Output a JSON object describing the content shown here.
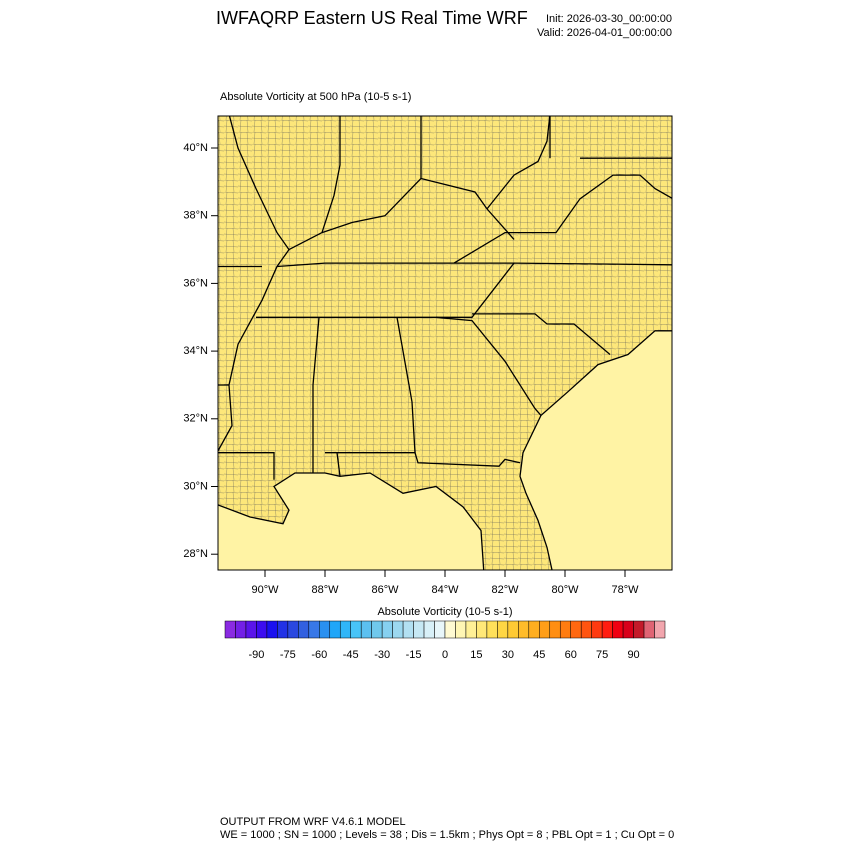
{
  "header": {
    "title": "IWFAQRP Eastern US Real Time WRF",
    "init": "Init: 2026-03-30_00:00:00",
    "valid": "Valid: 2026-04-01_00:00:00"
  },
  "plot": {
    "title": "Absolute Vorticity at 500 hPa   (10-5 s-1)",
    "lat_labels": [
      "40°N",
      "38°N",
      "36°N",
      "34°N",
      "32°N",
      "30°N",
      "28°N"
    ],
    "lon_labels": [
      "90°W",
      "88°W",
      "86°W",
      "84°W",
      "82°W",
      "80°W",
      "78°W"
    ]
  },
  "colorbar": {
    "title": "Absolute Vorticity  (10-5 s-1)",
    "range": [
      -105,
      105
    ],
    "ticks": [
      -90,
      -75,
      -60,
      -45,
      -30,
      -15,
      0,
      15,
      30,
      45,
      60,
      75,
      90
    ],
    "colors": [
      "#8a2be2",
      "#7320e6",
      "#5a14ea",
      "#3c0cf0",
      "#1a10f0",
      "#2232e6",
      "#2a48e0",
      "#3260e0",
      "#3878e8",
      "#2a90f0",
      "#20a6f8",
      "#30b6f8",
      "#48c4f8",
      "#5cc0f0",
      "#70c8ec",
      "#86d0f0",
      "#9cd8f0",
      "#b2e0f2",
      "#c6e8f4",
      "#d8f0f8",
      "#e8f6fa",
      "#fffad2",
      "#fff6b4",
      "#fff096",
      "#ffe878",
      "#ffe05a",
      "#ffd644",
      "#ffca34",
      "#ffbc2a",
      "#ffae20",
      "#ff9e18",
      "#ff8e12",
      "#ff7c10",
      "#ff6810",
      "#ff5410",
      "#ff3a10",
      "#ff1c10",
      "#f00012",
      "#d8001a",
      "#c41a2a",
      "#e06474",
      "#f2a6ae"
    ]
  },
  "footer": {
    "line1": "OUTPUT FROM WRF V4.6.1 MODEL",
    "line2": "WE = 1000 ; SN = 1000 ; Levels = 38 ; Dis = 1.5km ; Phys Opt = 8 ; PBL Opt = 1 ; Cu Opt = 0"
  }
}
